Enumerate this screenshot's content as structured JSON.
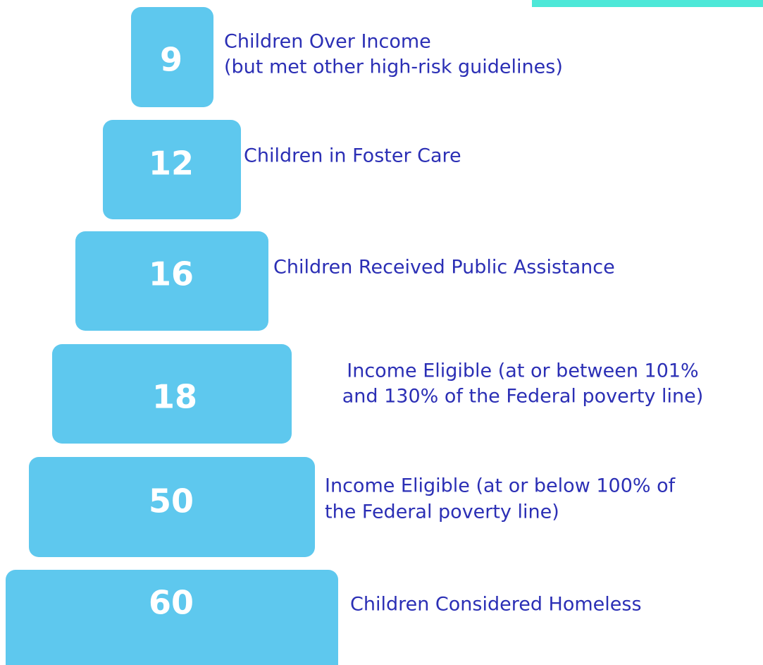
{
  "tiers": [
    {
      "value": 9,
      "lines": [
        "Children Over Income",
        "(but met other high-risk guidelines)"
      ]
    },
    {
      "value": 12,
      "lines": [
        "Children in Foster Care"
      ]
    },
    {
      "value": 16,
      "lines": [
        "Children Received Public Assistance"
      ]
    },
    {
      "value": 18,
      "lines": [
        "Income Eligible (at or between 101%",
        "and 130% of the Federal poverty line)"
      ]
    },
    {
      "value": 50,
      "lines": [
        "Income Eligible (at or below 100% of",
        "the Federal poverty line)"
      ]
    },
    {
      "value": 60,
      "lines": [
        "Children Considered Homeless"
      ]
    }
  ]
}
